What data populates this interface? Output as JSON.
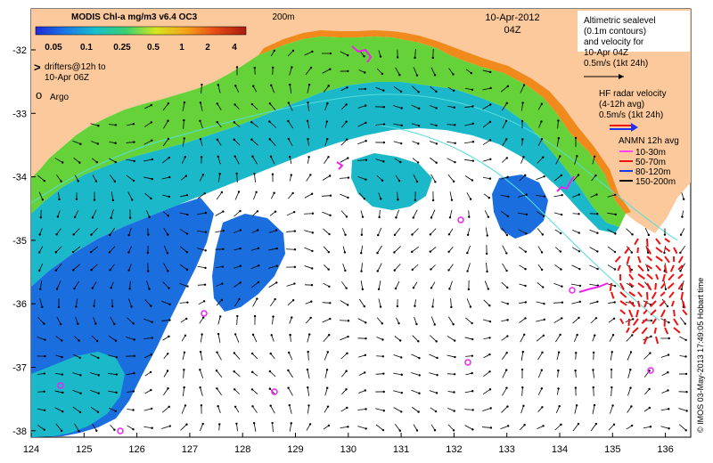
{
  "colorbar": {
    "title": "MODIS Chl-a mg/m3 v6.4 OC3",
    "ticks": [
      "0.05",
      "0.1",
      "0.25",
      "0.5",
      "1",
      "2",
      "4"
    ],
    "colors": [
      "#1f2ad6",
      "#1b78e6",
      "#18c0cc",
      "#38d070",
      "#d6e61e",
      "#f5a21a",
      "#e44a14",
      "#a81c10"
    ]
  },
  "labels": {
    "depth": "200m",
    "date": "10-Apr-2012",
    "time": "04Z",
    "drifter_symbol": ">",
    "drifters": [
      "drifters@12h to",
      "10-Apr 06Z"
    ],
    "argo_symbol": "o",
    "argo": "Argo",
    "credit": "© IMOS 03-May-2013 17:49:05 Hobart time"
  },
  "legend": {
    "altimetry": [
      "Altimetric sealevel",
      "(0.1m contours)",
      "and velocity for",
      "10-Apr 04Z",
      "0.5m/s (1kt 24h)"
    ],
    "hf_radar": [
      "HF radar velocity",
      "(4-12h avg)",
      "0.5m/s (1kt 24h)"
    ],
    "anmn_title": "ANMN 12h avg",
    "anmn": [
      {
        "label": "10-30m",
        "color": "#ff44ff"
      },
      {
        "label": "50-70m",
        "color": "#ee1111"
      },
      {
        "label": "80-120m",
        "color": "#2233ee"
      },
      {
        "label": "150-200m",
        "color": "#111111"
      }
    ]
  },
  "axes": {
    "x_ticks": [
      "124",
      "125",
      "126",
      "127",
      "128",
      "129",
      "130",
      "131",
      "132",
      "133",
      "134",
      "135",
      "136"
    ],
    "y_ticks": [
      "-32",
      "-33",
      "-34",
      "-35",
      "-36",
      "-37",
      "-38"
    ]
  },
  "colors": {
    "land": "#fbc99b",
    "coast_orange": "#f08a1c",
    "shelf_green": "#66d23a",
    "ocean_cyan": "#1ab8c8",
    "ocean_blue": "#1a6ede",
    "argo_ring": "#ee22ee",
    "contour": "#55dddd"
  }
}
